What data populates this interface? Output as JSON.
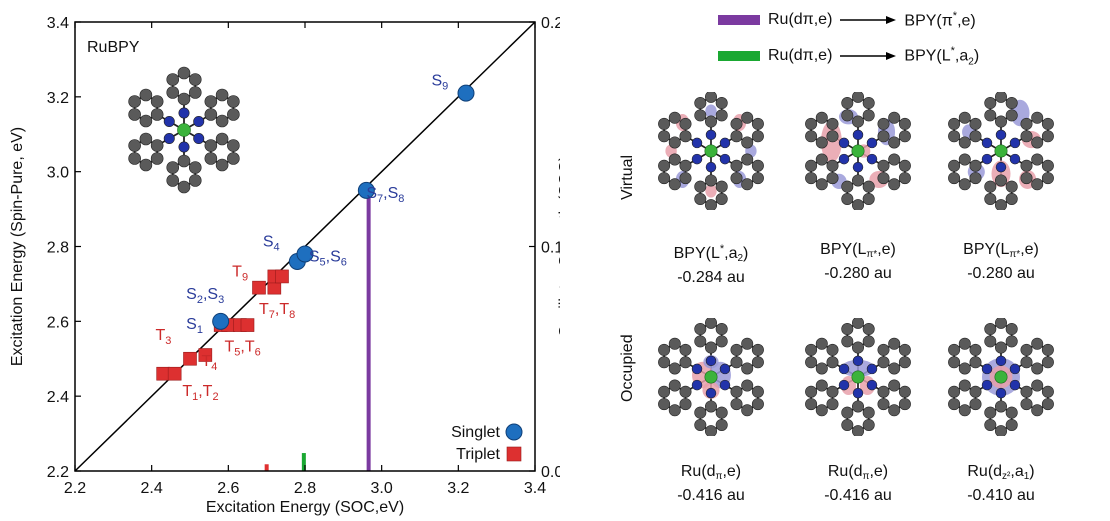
{
  "chart_data": {
    "type": "scatter",
    "xlabel": "Excitation Energy (SOC,eV)",
    "ylabel": "Excitation Energy (Spin-Pure, eV)",
    "y2label": "Oscillator Strength (SOC)",
    "xlim": [
      2.2,
      3.4
    ],
    "ylim": [
      2.2,
      3.4
    ],
    "y2lim": [
      0.0,
      0.2
    ],
    "x_ticks": [
      "2.2",
      "2.4",
      "2.6",
      "2.8",
      "3.0",
      "3.2",
      "3.4"
    ],
    "y_ticks": [
      "2.2",
      "2.4",
      "2.6",
      "2.8",
      "3.0",
      "3.2",
      "3.4"
    ],
    "y2_ticks": [
      "0.0",
      "0.1",
      "0.2"
    ],
    "inset_label": "RuBPY",
    "diagonal": [
      [
        2.2,
        2.2
      ],
      [
        3.4,
        3.4
      ]
    ],
    "singlets": [
      {
        "x": 2.58,
        "y": 2.6
      },
      {
        "x": 2.78,
        "y": 2.76
      },
      {
        "x": 2.8,
        "y": 2.78
      },
      {
        "x": 2.96,
        "y": 2.95
      },
      {
        "x": 3.22,
        "y": 3.21
      }
    ],
    "triplets": [
      {
        "x": 2.43,
        "y": 2.46
      },
      {
        "x": 2.46,
        "y": 2.46
      },
      {
        "x": 2.5,
        "y": 2.5
      },
      {
        "x": 2.54,
        "y": 2.51
      },
      {
        "x": 2.58,
        "y": 2.59
      },
      {
        "x": 2.6,
        "y": 2.59
      },
      {
        "x": 2.63,
        "y": 2.59
      },
      {
        "x": 2.65,
        "y": 2.59
      },
      {
        "x": 2.68,
        "y": 2.69
      },
      {
        "x": 2.72,
        "y": 2.69
      },
      {
        "x": 2.72,
        "y": 2.72
      },
      {
        "x": 2.74,
        "y": 2.72
      }
    ],
    "osc_bars": [
      {
        "x": 2.966,
        "f": 0.123,
        "color": "#7b3aa0"
      },
      {
        "x": 2.797,
        "f": 0.008,
        "color": "#1aa832"
      },
      {
        "x": 2.7,
        "f": 0.003,
        "color": "#e03030"
      }
    ],
    "state_labels": [
      {
        "base": "S",
        "sub": "9",
        "x": 3.13,
        "y": 3.23
      },
      {
        "base": "S",
        "sub": "7",
        "base2": "S",
        "sub2": "8",
        "x": 2.96,
        "y": 2.93
      },
      {
        "base": "S",
        "sub": "4",
        "x": 2.69,
        "y": 2.8
      },
      {
        "base": "S",
        "sub": "5",
        "base2": "S",
        "sub2": "6",
        "x": 2.81,
        "y": 2.76
      },
      {
        "base": "S",
        "sub": "2",
        "base2": "S",
        "sub2": "3",
        "x": 2.49,
        "y": 2.66
      },
      {
        "base": "S",
        "sub": "1",
        "x": 2.49,
        "y": 2.58
      },
      {
        "base": "T",
        "sub": "9",
        "x": 2.61,
        "y": 2.72
      },
      {
        "base": "T",
        "sub": "7",
        "base2": "T",
        "sub2": "8",
        "x": 2.68,
        "y": 2.62
      },
      {
        "base": "T",
        "sub": "5",
        "base2": "T",
        "sub2": "6",
        "x": 2.59,
        "y": 2.52
      },
      {
        "base": "T",
        "sub": "3",
        "x": 2.41,
        "y": 2.55
      },
      {
        "base": "T",
        "sub": "4",
        "x": 2.53,
        "y": 2.48
      },
      {
        "base": "T",
        "sub": "1",
        "base2": "T",
        "sub2": "2",
        "x": 2.48,
        "y": 2.4
      }
    ],
    "legend": [
      {
        "name": "Singlet",
        "marker": "circle",
        "color": "#1e6fbf"
      },
      {
        "name": "Triplet",
        "marker": "square",
        "color": "#dd3030"
      }
    ]
  },
  "transition_legend": [
    {
      "from": "Ru(dπ,e)",
      "to_base": "BPY(π",
      "to_sup": "*",
      "to_tail": ",e)",
      "color": "#7b3aa0"
    },
    {
      "from": "Ru(dπ,e)",
      "to_base": "BPY(L",
      "to_sup": "*",
      "to_mid": ",a",
      "to_sub": "2",
      "to_tail": ")",
      "color": "#1aa832"
    }
  ],
  "row_labels": {
    "virtual": "Virtual",
    "occupied": "Occupied"
  },
  "orbitals": {
    "virtual": [
      {
        "name_html": "BPY(L<span class=\"sup\">*</span>,a<span class=\"sub\">2</span>)",
        "energy": "-0.284 au"
      },
      {
        "name_html": "BPY(L<span class=\"sub\">π*</span>,e)",
        "energy": "-0.280 au"
      },
      {
        "name_html": "BPY(L<span class=\"sub\">π*</span>,e)",
        "energy": "-0.280 au"
      }
    ],
    "occupied": [
      {
        "name_html": "Ru(d<span class=\"sub\">π</span>,e)",
        "energy": "-0.416 au"
      },
      {
        "name_html": "Ru(d<span class=\"sub\">π</span>,e)",
        "energy": "-0.416 au"
      },
      {
        "name_html": "Ru(d<span class=\"sub\">z²</span>,a<span class=\"sub\">1</span>)",
        "energy": "-0.410 au"
      }
    ]
  },
  "colors": {
    "carbon": "#5a5a5a",
    "nitrogen": "#2233aa",
    "ruthenium": "#3bb33b",
    "lobe_pos": "#e8a0aa",
    "lobe_neg": "#9a9ad8"
  }
}
